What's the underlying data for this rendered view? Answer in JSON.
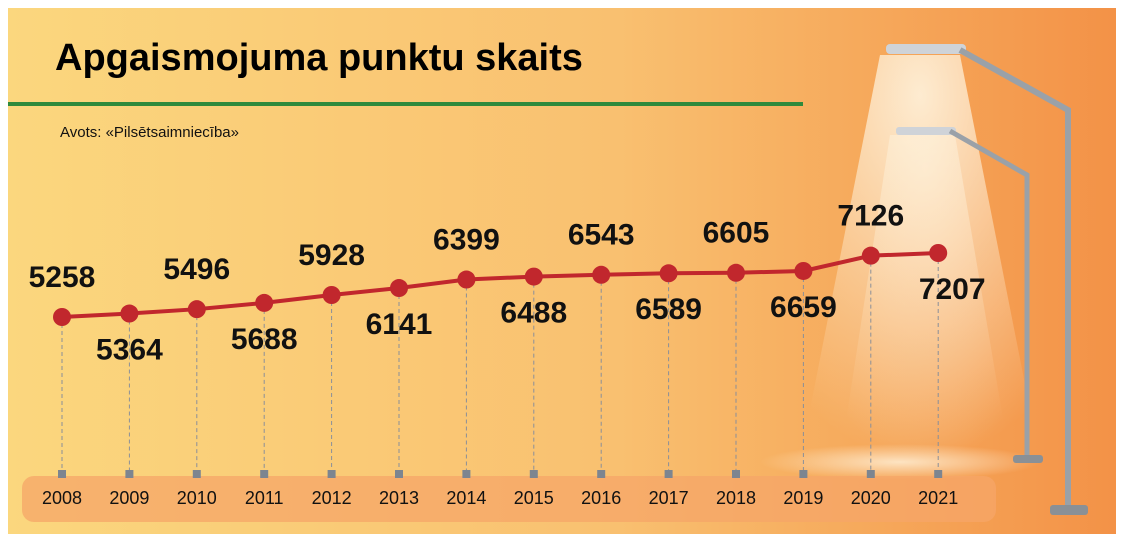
{
  "chart_data": {
    "type": "line",
    "title": "Apgaismojuma punktu skaits",
    "subtitle": "Avots: «Pilsētsaimniecība»",
    "categories": [
      "2008",
      "2009",
      "2010",
      "2011",
      "2012",
      "2013",
      "2014",
      "2015",
      "2016",
      "2017",
      "2018",
      "2019",
      "2020",
      "2021"
    ],
    "values": [
      5258,
      5364,
      5496,
      5688,
      5928,
      6141,
      6399,
      6488,
      6543,
      6589,
      6605,
      6659,
      7126,
      7207
    ],
    "color": "#c1272d"
  }
}
